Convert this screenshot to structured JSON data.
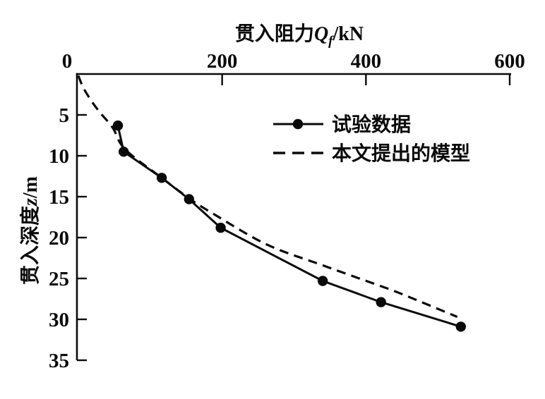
{
  "chart_data": {
    "type": "line",
    "title": "",
    "x_axis": {
      "label": "贯入阻力Qf/kN",
      "label_parts": {
        "text": "贯入阻力",
        "symbol": "Q",
        "subscript": "f",
        "unit": "/kN"
      },
      "position": "top",
      "ticks": [
        0,
        200,
        400,
        600
      ],
      "range": [
        0,
        600
      ],
      "grid": false
    },
    "y_axis": {
      "label": "贯入深度z/m",
      "label_parts": {
        "text": "贯入深度",
        "symbol": "z",
        "unit": "/m"
      },
      "position": "left",
      "inverted": true,
      "ticks": [
        5,
        10,
        15,
        20,
        25,
        30,
        35
      ],
      "range": [
        0,
        35
      ],
      "grid": false
    },
    "series": [
      {
        "name": "试验数据",
        "type": "line",
        "line_style": "solid",
        "marker": "filled-circle",
        "color": "#0a0a0a",
        "points": [
          [
            55,
            6.3
          ],
          [
            63,
            9.5
          ],
          [
            116,
            12.7
          ],
          [
            154,
            15.3
          ],
          [
            198,
            18.8
          ],
          [
            340,
            25.3
          ],
          [
            421,
            27.9
          ],
          [
            532,
            30.9
          ]
        ]
      },
      {
        "name": "本文提出的模型",
        "type": "line",
        "line_style": "dashed",
        "marker": "none",
        "color": "#0a0a0a",
        "points": [
          [
            0,
            0.2
          ],
          [
            7,
            1.7
          ],
          [
            19,
            3.4
          ],
          [
            30,
            4.7
          ],
          [
            48,
            6.6
          ],
          [
            65,
            9.2
          ],
          [
            116,
            12.7
          ],
          [
            154,
            15.2
          ],
          [
            186,
            17.0
          ],
          [
            261,
            20.8
          ],
          [
            340,
            23.4
          ],
          [
            429,
            26.2
          ],
          [
            461,
            27.3
          ],
          [
            527,
            29.7
          ]
        ]
      }
    ],
    "legend": {
      "position": "inside-upper-right",
      "entries": [
        {
          "label": "试验数据",
          "sample": "solid-line-with-dot"
        },
        {
          "label": "本文提出的模型",
          "sample": "dashed-line"
        }
      ]
    },
    "colors": {
      "foreground": "#0a0a0a",
      "background": "#ffffff"
    }
  }
}
